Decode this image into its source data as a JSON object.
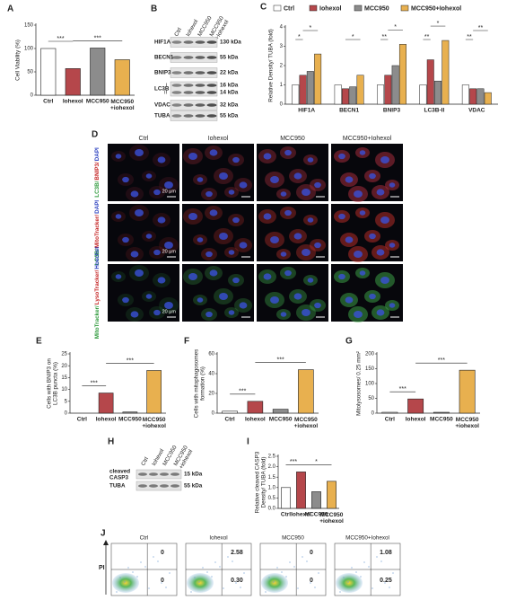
{
  "panels": [
    "A",
    "B",
    "C",
    "D",
    "E",
    "F",
    "G",
    "H",
    "I",
    "J"
  ],
  "chart_data": [
    {
      "type": "bar",
      "ylabel": "Cell Viability (%)",
      "categories": [
        "Ctrl",
        "Iohexol",
        "MCC950",
        "MCC950\n+iohexol"
      ],
      "values": [
        100,
        57,
        101,
        76
      ],
      "colors": [
        "#ffffff",
        "#b5474b",
        "#8c8c8c",
        "#e8b04f"
      ],
      "ylim": [
        0,
        150
      ],
      "yticks": [
        0,
        50,
        100,
        150
      ],
      "annotations": [
        "***",
        "***"
      ]
    },
    {
      "type": "bar",
      "ylabel": "Relative Density/ TUBA (fold)",
      "categories": [
        "HIF1A",
        "BECN1",
        "BNIP3",
        "LC3B-II",
        "VDAC"
      ],
      "series": [
        {
          "name": "Ctrl",
          "color": "#ffffff",
          "values": [
            1,
            1,
            1,
            1,
            1
          ]
        },
        {
          "name": "Iohexol",
          "color": "#b5474b",
          "values": [
            1.5,
            0.8,
            1.5,
            2.3,
            0.8
          ]
        },
        {
          "name": "MCC950",
          "color": "#8c8c8c",
          "values": [
            1.7,
            0.9,
            2,
            1.2,
            0.8
          ]
        },
        {
          "name": "MCC950+Iohexol",
          "color": "#e8b04f",
          "values": [
            2.6,
            1.5,
            3.1,
            3.3,
            0.6
          ]
        }
      ],
      "ylim": [
        0,
        4
      ],
      "yticks": [
        0,
        1,
        2,
        3,
        4
      ],
      "annotations": [
        "*",
        "*",
        "*",
        "**",
        "*",
        "**",
        "*",
        "**",
        "**"
      ]
    },
    {
      "type": "bar",
      "ylabel": "Cells with BNIP3 on\nLC3B puncta (%)",
      "categories": [
        "Ctrl",
        "Iohexol",
        "MCC950",
        "MCC950\n+iohexol"
      ],
      "values": [
        0,
        8.5,
        0.5,
        18
      ],
      "colors": [
        "#ffffff",
        "#b5474b",
        "#8c8c8c",
        "#e8b04f"
      ],
      "ylim": [
        0,
        25
      ],
      "yticks": [
        0,
        5,
        10,
        15,
        20,
        25
      ],
      "annotations": [
        "***",
        "***"
      ]
    },
    {
      "type": "bar",
      "ylabel": "Cells with mitophagosomes\nformation (%)",
      "categories": [
        "Ctrl",
        "Iohexol",
        "MCC950",
        "MCC950\n+iohexol"
      ],
      "values": [
        2,
        12,
        4,
        44
      ],
      "colors": [
        "#ffffff",
        "#b5474b",
        "#8c8c8c",
        "#e8b04f"
      ],
      "ylim": [
        0,
        60
      ],
      "yticks": [
        0,
        20,
        40,
        60
      ],
      "annotations": [
        "***",
        "***"
      ]
    },
    {
      "type": "bar",
      "ylabel": "Mitolysosomes/ 0.25 mm²",
      "categories": [
        "Ctrl",
        "Iohexol",
        "MCC950",
        "MCC950\n+iohexol"
      ],
      "values": [
        3,
        48,
        3,
        145
      ],
      "colors": [
        "#ffffff",
        "#b5474b",
        "#8c8c8c",
        "#e8b04f"
      ],
      "ylim": [
        0,
        200
      ],
      "yticks": [
        0,
        50,
        100,
        150,
        200
      ],
      "annotations": [
        "***",
        "***"
      ]
    },
    {
      "type": "bar",
      "ylabel": "Relative cleaved CASP3\nDensity/ TUBA (fold)",
      "categories": [
        "Ctrl",
        "Iohexol",
        "MCC950",
        "MCC950\n+iohexol"
      ],
      "values": [
        1,
        1.75,
        0.8,
        1.3
      ],
      "colors": [
        "#ffffff",
        "#b5474b",
        "#8c8c8c",
        "#e8b04f"
      ],
      "ylim": [
        0,
        2.5
      ],
      "yticks": [
        {
          "value": 0,
          "label": "0.0"
        },
        {
          "value": 0.5,
          "label": "0.5"
        },
        {
          "value": 1,
          "label": "1.0"
        },
        {
          "value": 1.5,
          "label": "1.5"
        },
        {
          "value": 2,
          "label": "2.0"
        },
        {
          "value": 2.5,
          "label": "2.5"
        }
      ],
      "annotations": [
        "***",
        "*"
      ]
    }
  ],
  "blot_b": {
    "lanes": [
      "Ctrl",
      "Iohexol",
      "MCC950",
      "MCC950\n+Iohexol"
    ],
    "rows": [
      {
        "protein": "HIF1A",
        "kda": "130 kDa"
      },
      {
        "protein": "BECN1",
        "kda": "55 kDa"
      },
      {
        "protein": "BNIP3",
        "kda": "22 kDa"
      },
      {
        "protein": "LC3B",
        "isoforms": [
          "I",
          "II"
        ],
        "kda": [
          "16 kDa",
          "14 kDa"
        ]
      },
      {
        "protein": "VDAC",
        "kda": "32 kDa"
      },
      {
        "protein": "TUBA",
        "kda": "55 kDa"
      }
    ]
  },
  "microscopy": {
    "columns": [
      "Ctrl",
      "Iohexol",
      "MCC950",
      "MCC950+Iohexol"
    ],
    "rows": [
      [
        "LC3B/",
        "BNIP3/",
        "DAPI"
      ],
      [
        "LC3B/",
        "MitoTracker/",
        "DAPI"
      ],
      [
        "MitoTracker/",
        "LysoTracker/",
        "Hoechst"
      ]
    ],
    "scale": "20 μm"
  },
  "blot_h": {
    "lanes": [
      "Ctrl",
      "Iohexol",
      "MCC950",
      "MCC950\n+iohexol"
    ],
    "rows": [
      {
        "protein": "cleaved\nCASP3",
        "kda": "15 kDa"
      },
      {
        "protein": "TUBA",
        "kda": "55 kDa"
      }
    ]
  },
  "flow": {
    "axis": "PI",
    "plots": [
      {
        "title": "Ctrl",
        "upper_right": "0",
        "lower_right": "0"
      },
      {
        "title": "Iohexol",
        "upper_right": "2.58",
        "lower_right": "0.30"
      },
      {
        "title": "MCC950",
        "upper_right": "0",
        "lower_right": "0"
      },
      {
        "title": "MCC950+Iohexol",
        "upper_right": "1.08",
        "lower_right": "0.25"
      }
    ]
  }
}
